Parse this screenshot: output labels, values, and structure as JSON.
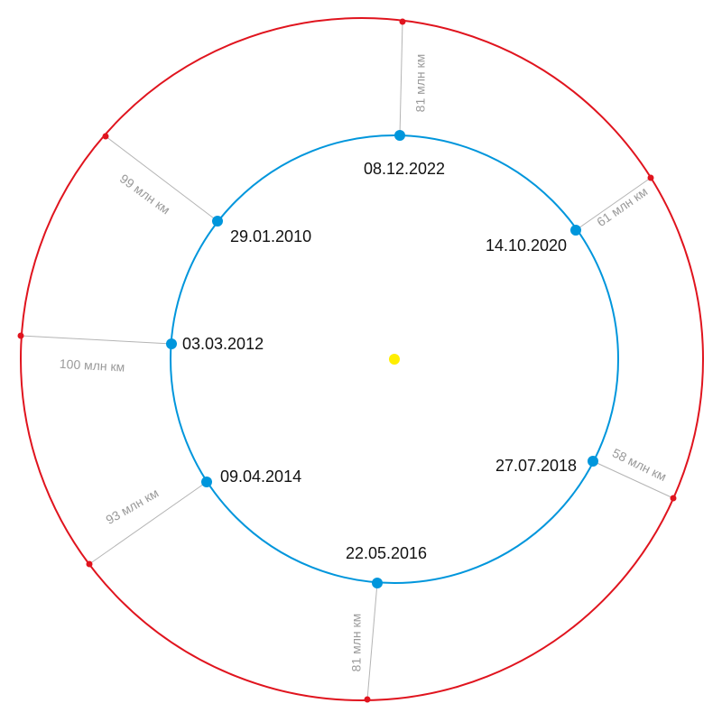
{
  "colors": {
    "earth_orbit": "#0096dc",
    "mars_orbit": "#e0141e",
    "sun": "#ffee00",
    "connector": "#b4b4b4",
    "distance_text": "#9a9a9a",
    "date_text": "#111111"
  },
  "oppositions": [
    {
      "date": "08.12.2022",
      "distance": "81 млн км"
    },
    {
      "date": "14.10.2020",
      "distance": "61 млн км"
    },
    {
      "date": "27.07.2018",
      "distance": "58 млн км"
    },
    {
      "date": "22.05.2016",
      "distance": "81 млн км"
    },
    {
      "date": "09.04.2014",
      "distance": "93 млн км"
    },
    {
      "date": "03.03.2012",
      "distance": "100 млн км"
    },
    {
      "date": "29.01.2010",
      "distance": "99 млн км"
    }
  ]
}
